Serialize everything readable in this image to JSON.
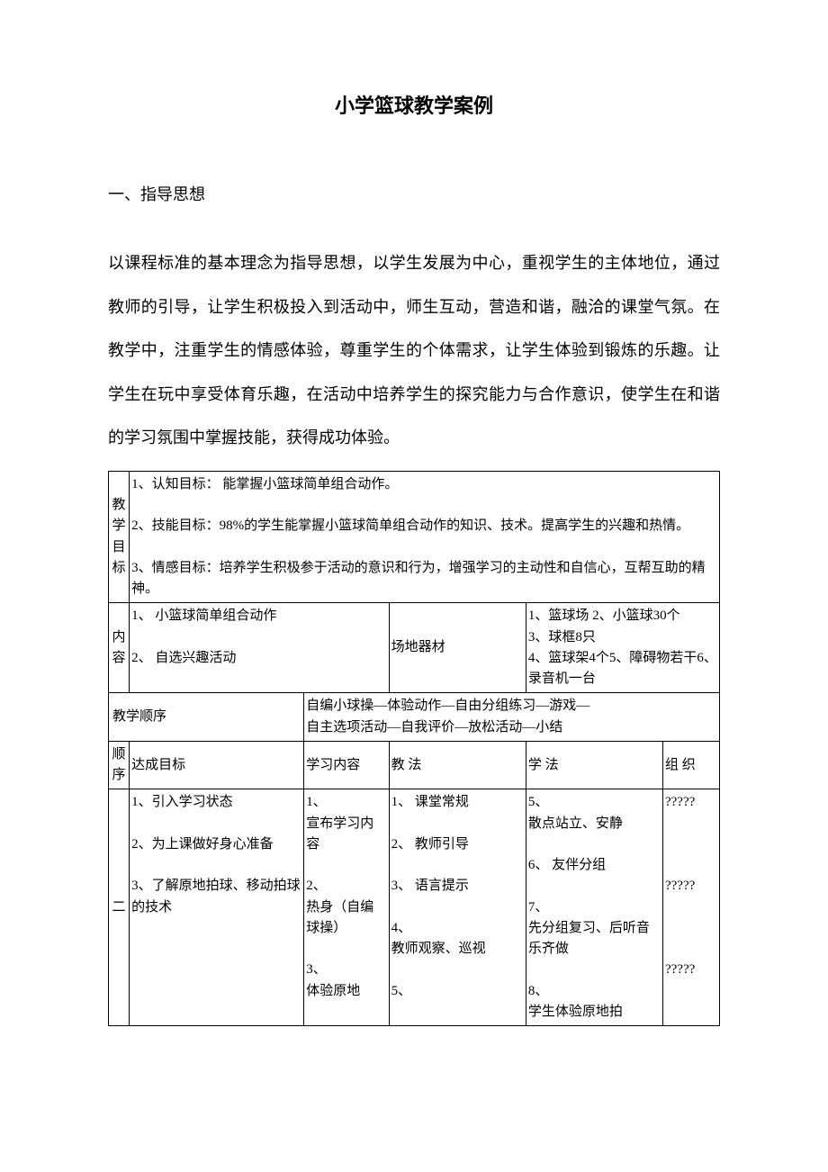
{
  "title": "小学篮球教学案例",
  "section1_heading": "一、指导思想",
  "body_paragraph": "以课程标准的基本理念为指导思想，以学生发展为中心，重视学生的主体地位，通过教师的引导，让学生积极投入到活动中，师生互动，营造和谐，融洽的课堂气氛。在教学中，注重学生的情感体验，尊重学生的个体需求，让学生体验到锻炼的乐趣。让学生在玩中享受体育乐趣，在活动中培养学生的探究能力与合作意识，使学生在和谐的学习氛围中掌握技能，获得成功体验。",
  "row_goals_label": "教学目标",
  "row_goals_text": "1、认知目标： 能掌握小篮球简单组合动作。\n\n2、技能目标：98%的学生能掌握小篮球简单组合动作的知识、技术。提高学生的兴趣和热情。\n\n3、情感目标：培养学生积极参于活动的意识和行为，增强学习的主动性和自信心，互帮互助的精神。",
  "row_content_label": "内容",
  "row_content_left": "1、  小篮球简单组合动作\n\n2、  自选兴趣活动",
  "row_content_mid": "场地器材",
  "row_content_right": "1、篮球场 2、小篮球30个\n3、球框8只\n4、篮球架4个5、障碍物若干6、录音机一台",
  "row_seq_label": "教学顺序",
  "row_seq_text": "自编小球操—体验动作—自由分组练习—游戏—\n自主选项活动—自我评价—放松活动—小结",
  "hdr_order": "顺序",
  "hdr_target": "达成目标",
  "hdr_content": "学习内容",
  "hdr_method": "教 法",
  "hdr_learn": "学 法",
  "hdr_org": "组 织",
  "row2_order": "二",
  "row2_target": "1、引入学习状态\n\n2、为上课做好身心准备\n\n3、了解原地拍球、移动拍球的技术",
  "row2_content": "1、\n宣布学习内容\n\n2、\n热身（自编球操）\n\n3、\n体验原地",
  "row2_method": "1、  课堂常规\n\n2、  教师引导\n\n3、  语言提示\n\n4、\n教师观察、巡视\n\n5、",
  "row2_learn": "5、\n散点站立、安静\n\n6、  友伴分组\n\n7、\n先分组复习、后听音乐齐做\n\n8、\n学生体验原地拍",
  "row2_org": "?????\n\n\n\n?????\n\n\n\n?????"
}
